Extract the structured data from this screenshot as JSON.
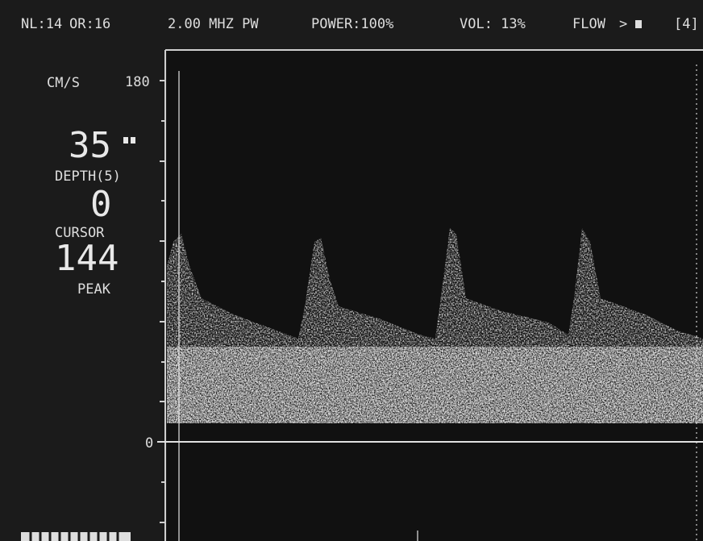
{
  "status_bar": {
    "nl": "NL:14",
    "or": "OR:16",
    "frequency": "2.00 MHZ PW",
    "power": "POWER:100%",
    "volume": "VOL: 13%",
    "flow": "FLOW",
    "channel": "[4]"
  },
  "side_panel": {
    "unit": "CM/S",
    "depth_value": "35",
    "depth_label": "DEPTH(5)",
    "cursor_value": "0",
    "cursor_label": "CURSOR",
    "peak_value": "144",
    "peak_label": "PEAK"
  },
  "axis": {
    "max_label": "180",
    "zero_label": "0"
  }
}
